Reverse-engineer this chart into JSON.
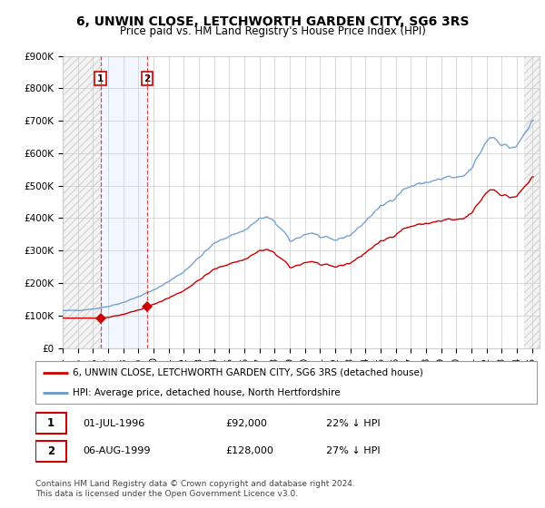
{
  "title": "6, UNWIN CLOSE, LETCHWORTH GARDEN CITY, SG6 3RS",
  "subtitle": "Price paid vs. HM Land Registry's House Price Index (HPI)",
  "ylim": [
    0,
    900000
  ],
  "yticks": [
    0,
    100000,
    200000,
    300000,
    400000,
    500000,
    600000,
    700000,
    800000,
    900000
  ],
  "ytick_labels": [
    "£0",
    "£100K",
    "£200K",
    "£300K",
    "£400K",
    "£500K",
    "£600K",
    "£700K",
    "£800K",
    "£900K"
  ],
  "xlim_start": 1994.0,
  "xlim_end": 2025.5,
  "sale1_x": 1996.5,
  "sale1_y": 92000,
  "sale2_x": 1999.58,
  "sale2_y": 128000,
  "sale1_label": "1",
  "sale2_label": "2",
  "line_color_red": "#cc0000",
  "line_color_blue": "#6699cc",
  "marker_color": "#cc0000",
  "vline_color": "#cc0000",
  "grid_color": "#cccccc",
  "background_color": "#ffffff",
  "legend_line1": "6, UNWIN CLOSE, LETCHWORTH GARDEN CITY, SG6 3RS (detached house)",
  "legend_line2": "HPI: Average price, detached house, North Hertfordshire",
  "table_row1": [
    "1",
    "01-JUL-1996",
    "£92,000",
    "22% ↓ HPI"
  ],
  "table_row2": [
    "2",
    "06-AUG-1999",
    "£128,000",
    "27% ↓ HPI"
  ],
  "footer": "Contains HM Land Registry data © Crown copyright and database right 2024.\nThis data is licensed under the Open Government Licence v3.0.",
  "title_fontsize": 10,
  "subtitle_fontsize": 8.5,
  "tick_fontsize": 7.5,
  "xtick_years": [
    1994,
    1995,
    1996,
    1997,
    1998,
    1999,
    2000,
    2001,
    2002,
    2003,
    2004,
    2005,
    2006,
    2007,
    2008,
    2009,
    2010,
    2011,
    2012,
    2013,
    2014,
    2015,
    2016,
    2017,
    2018,
    2019,
    2020,
    2021,
    2022,
    2023,
    2024,
    2025
  ]
}
